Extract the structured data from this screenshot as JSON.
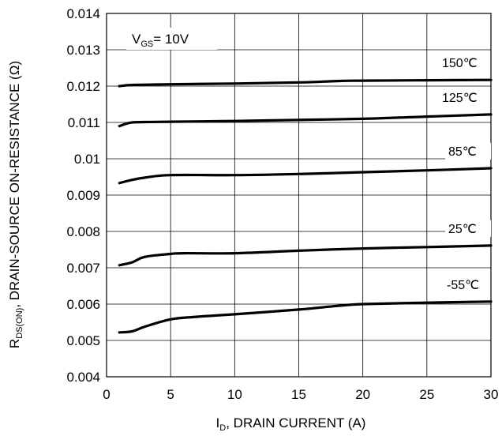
{
  "chart_data": {
    "type": "line",
    "xlabel_main": "I",
    "xlabel_sub": "D",
    "xlabel_rest": ", DRAIN CURRENT (A)",
    "ylabel_main": "R",
    "ylabel_sub": "DS(ON)",
    "ylabel_rest": ", DRAIN-SOURCE ON-RESISTANCE (Ω)",
    "annotation_main": "V",
    "annotation_sub": "GS",
    "annotation_rest": "= 10V",
    "xlim": [
      0,
      30
    ],
    "ylim": [
      0.004,
      0.014
    ],
    "x_ticks": [
      "0",
      "5",
      "10",
      "15",
      "20",
      "25",
      "30"
    ],
    "y_ticks": [
      "0.004",
      "0.005",
      "0.006",
      "0.007",
      "0.008",
      "0.009",
      "0.01",
      "0.011",
      "0.012",
      "0.013",
      "0.014"
    ],
    "grid": true,
    "series": [
      {
        "name": "150℃",
        "x": [
          1,
          2,
          5,
          10,
          15,
          18,
          20,
          25,
          30
        ],
        "values": [
          0.012,
          0.01203,
          0.01205,
          0.01207,
          0.0121,
          0.01214,
          0.01215,
          0.01216,
          0.01217
        ]
      },
      {
        "name": "125℃",
        "x": [
          1,
          1.5,
          2,
          3,
          5,
          10,
          15,
          20,
          25,
          30
        ],
        "values": [
          0.0109,
          0.01096,
          0.011,
          0.01101,
          0.01102,
          0.01104,
          0.01107,
          0.0111,
          0.01116,
          0.01122
        ]
      },
      {
        "name": "85℃",
        "x": [
          1,
          2,
          3,
          5,
          10,
          15,
          20,
          25,
          30
        ],
        "values": [
          0.00933,
          0.00942,
          0.00948,
          0.00955,
          0.00955,
          0.00958,
          0.00963,
          0.00968,
          0.00974
        ]
      },
      {
        "name": "25℃",
        "x": [
          1,
          2,
          3,
          5,
          6,
          10,
          15,
          20,
          25,
          30
        ],
        "values": [
          0.00707,
          0.00715,
          0.0073,
          0.00738,
          0.0074,
          0.0074,
          0.00747,
          0.00753,
          0.00757,
          0.00761
        ]
      },
      {
        "name": "-55℃",
        "x": [
          1,
          2,
          3,
          5,
          7,
          10,
          15,
          18,
          20,
          25,
          30
        ],
        "values": [
          0.00522,
          0.00525,
          0.00538,
          0.00558,
          0.00565,
          0.00572,
          0.00585,
          0.00595,
          0.006,
          0.00604,
          0.00607
        ]
      }
    ]
  }
}
